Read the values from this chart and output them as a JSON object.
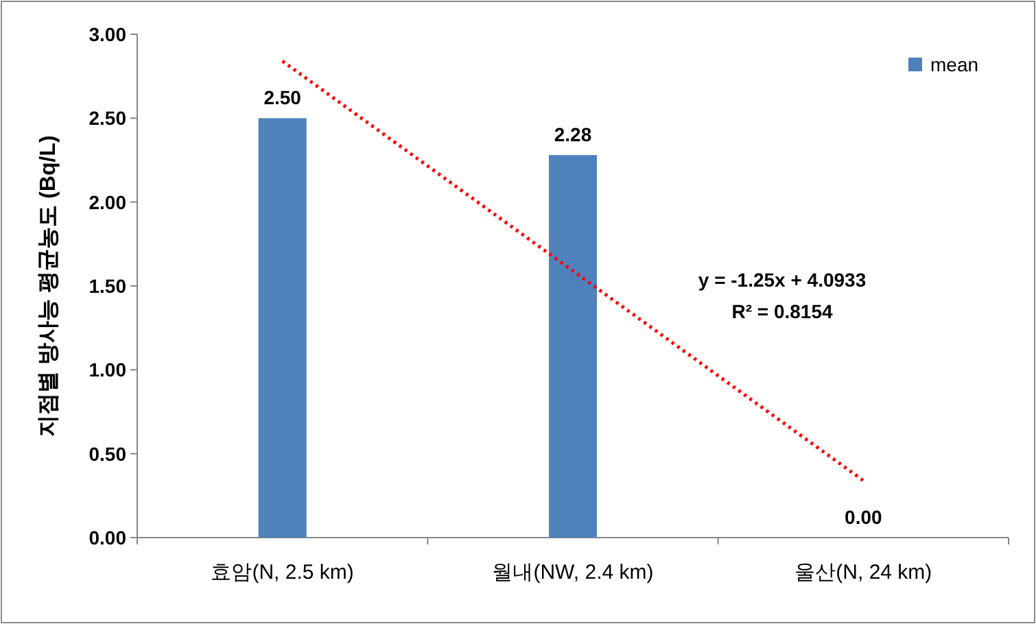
{
  "chart_data": {
    "type": "bar",
    "ylabel": "지점별 방사능 평균농도 (Bq/L)",
    "categories": [
      "효암(N, 2.5 km)",
      "월내(NW, 2.4 km)",
      "울산(N, 24 km)"
    ],
    "series": [
      {
        "name": "mean",
        "color": "#4f81bd",
        "values": [
          2.5,
          2.28,
          0
        ],
        "value_labels": [
          "2.50",
          "2.28",
          "0.00"
        ]
      },
      {
        "type": "line",
        "x": [
          "효암(N, 2.5 km)",
          "울산(N, 24 km)"
        ],
        "values": [
          2.84,
          0.34
        ],
        "color": "#ff0000",
        "line_style": "dotted"
      }
    ],
    "ylim": [
      0,
      3
    ],
    "yticks": [
      {
        "value": 0,
        "label": "0.00"
      },
      {
        "value": 0.5,
        "label": "0.50"
      },
      {
        "value": 1,
        "label": "1.00"
      },
      {
        "value": 1.5,
        "label": "1.50"
      },
      {
        "value": 2,
        "label": "2.00"
      },
      {
        "value": 2.5,
        "label": "2.50"
      },
      {
        "value": 3,
        "label": "3.00"
      }
    ],
    "annotations": [
      "y = -1.25x + 4.0933",
      "R² = 0.8154"
    ],
    "legend": "top right",
    "grid": false
  }
}
